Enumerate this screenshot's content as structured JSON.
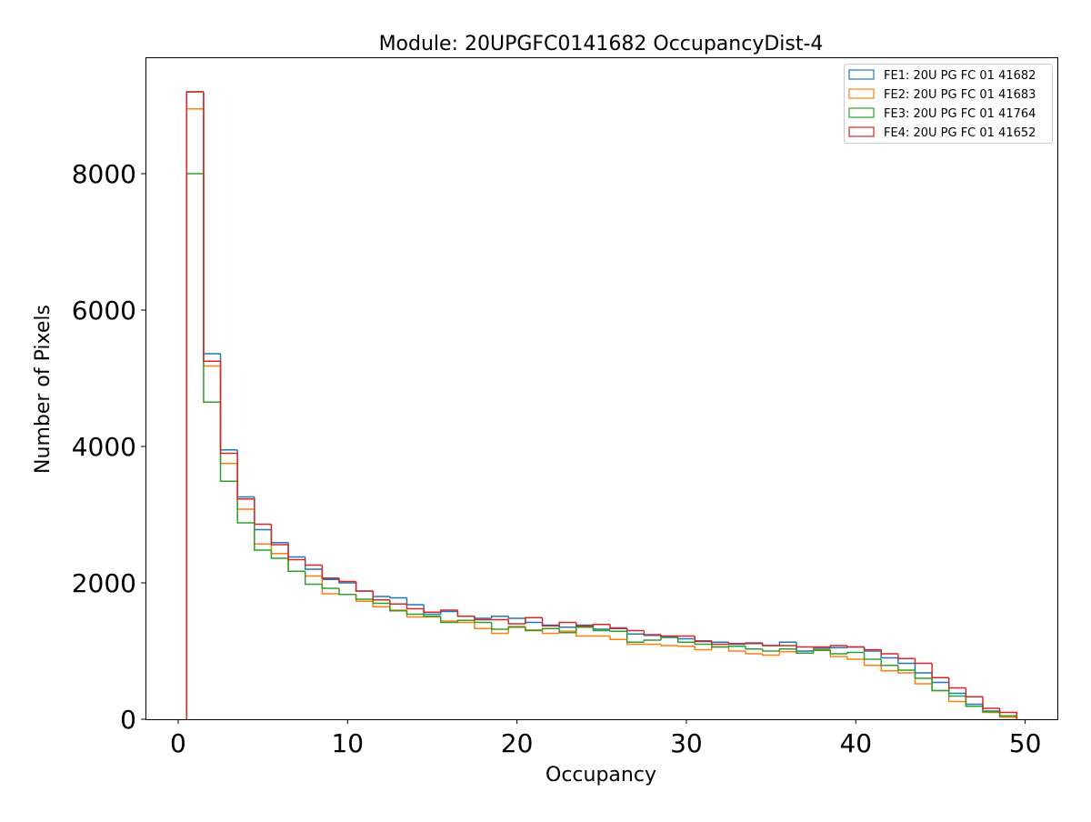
{
  "chart_data": {
    "type": "histogram-step",
    "title": "Module: 20UPGFC0141682 OccupancyDist-4",
    "xlabel": "Occupancy",
    "ylabel": "Number of Pixels",
    "xlim": [
      -1.93,
      51.9
    ],
    "ylim": [
      0,
      9707
    ],
    "xticks": [
      0,
      10,
      20,
      30,
      40,
      50
    ],
    "yticks": [
      0,
      2000,
      4000,
      6000,
      8000
    ],
    "grid": false,
    "legend_placement": "top-right",
    "bin_edges_start": 0.5,
    "bin_width": 1,
    "series": [
      {
        "name": "FE1: 20U PG FC 01 41682",
        "color": "#1f77b4",
        "values": [
          9200,
          5360,
          3950,
          3260,
          2780,
          2590,
          2380,
          2200,
          2050,
          2000,
          1880,
          1800,
          1780,
          1680,
          1540,
          1580,
          1510,
          1480,
          1510,
          1480,
          1420,
          1380,
          1350,
          1380,
          1320,
          1340,
          1250,
          1230,
          1200,
          1180,
          1150,
          1130,
          1100,
          1120,
          1080,
          1130,
          1000,
          1040,
          1050,
          1060,
          1000,
          900,
          820,
          680,
          540,
          380,
          220,
          120,
          50
        ]
      },
      {
        "name": "FE2: 20U PG FC 01 41683",
        "color": "#ff7f0e",
        "values": [
          8950,
          5180,
          3750,
          3080,
          2570,
          2430,
          2170,
          2100,
          1840,
          1830,
          1730,
          1650,
          1600,
          1500,
          1500,
          1440,
          1420,
          1330,
          1260,
          1360,
          1310,
          1260,
          1290,
          1220,
          1220,
          1170,
          1100,
          1100,
          1080,
          1070,
          1020,
          1060,
          1000,
          960,
          940,
          990,
          970,
          1020,
          920,
          880,
          790,
          710,
          680,
          520,
          420,
          260,
          190,
          100,
          30
        ]
      },
      {
        "name": "FE3: 20U PG FC 01 41764",
        "color": "#2ca02c",
        "values": [
          8000,
          4650,
          3490,
          2880,
          2480,
          2360,
          2170,
          1980,
          1920,
          1830,
          1760,
          1700,
          1590,
          1540,
          1510,
          1420,
          1450,
          1420,
          1320,
          1350,
          1300,
          1330,
          1270,
          1350,
          1300,
          1290,
          1130,
          1160,
          1210,
          1130,
          1100,
          1060,
          1070,
          1030,
          1000,
          1030,
          970,
          1010,
          960,
          980,
          880,
          790,
          720,
          600,
          420,
          340,
          190,
          110,
          50
        ]
      },
      {
        "name": "FE4: 20U PG FC 01 41652",
        "color": "#d62728",
        "values": [
          9200,
          5250,
          3900,
          3230,
          2860,
          2560,
          2340,
          2260,
          2070,
          2020,
          1880,
          1750,
          1690,
          1620,
          1570,
          1600,
          1510,
          1460,
          1460,
          1400,
          1490,
          1370,
          1420,
          1370,
          1390,
          1330,
          1300,
          1240,
          1220,
          1220,
          1140,
          1100,
          1110,
          1110,
          1080,
          1080,
          1060,
          1060,
          1080,
          1060,
          1020,
          960,
          890,
          820,
          610,
          460,
          330,
          160,
          100
        ]
      }
    ]
  }
}
